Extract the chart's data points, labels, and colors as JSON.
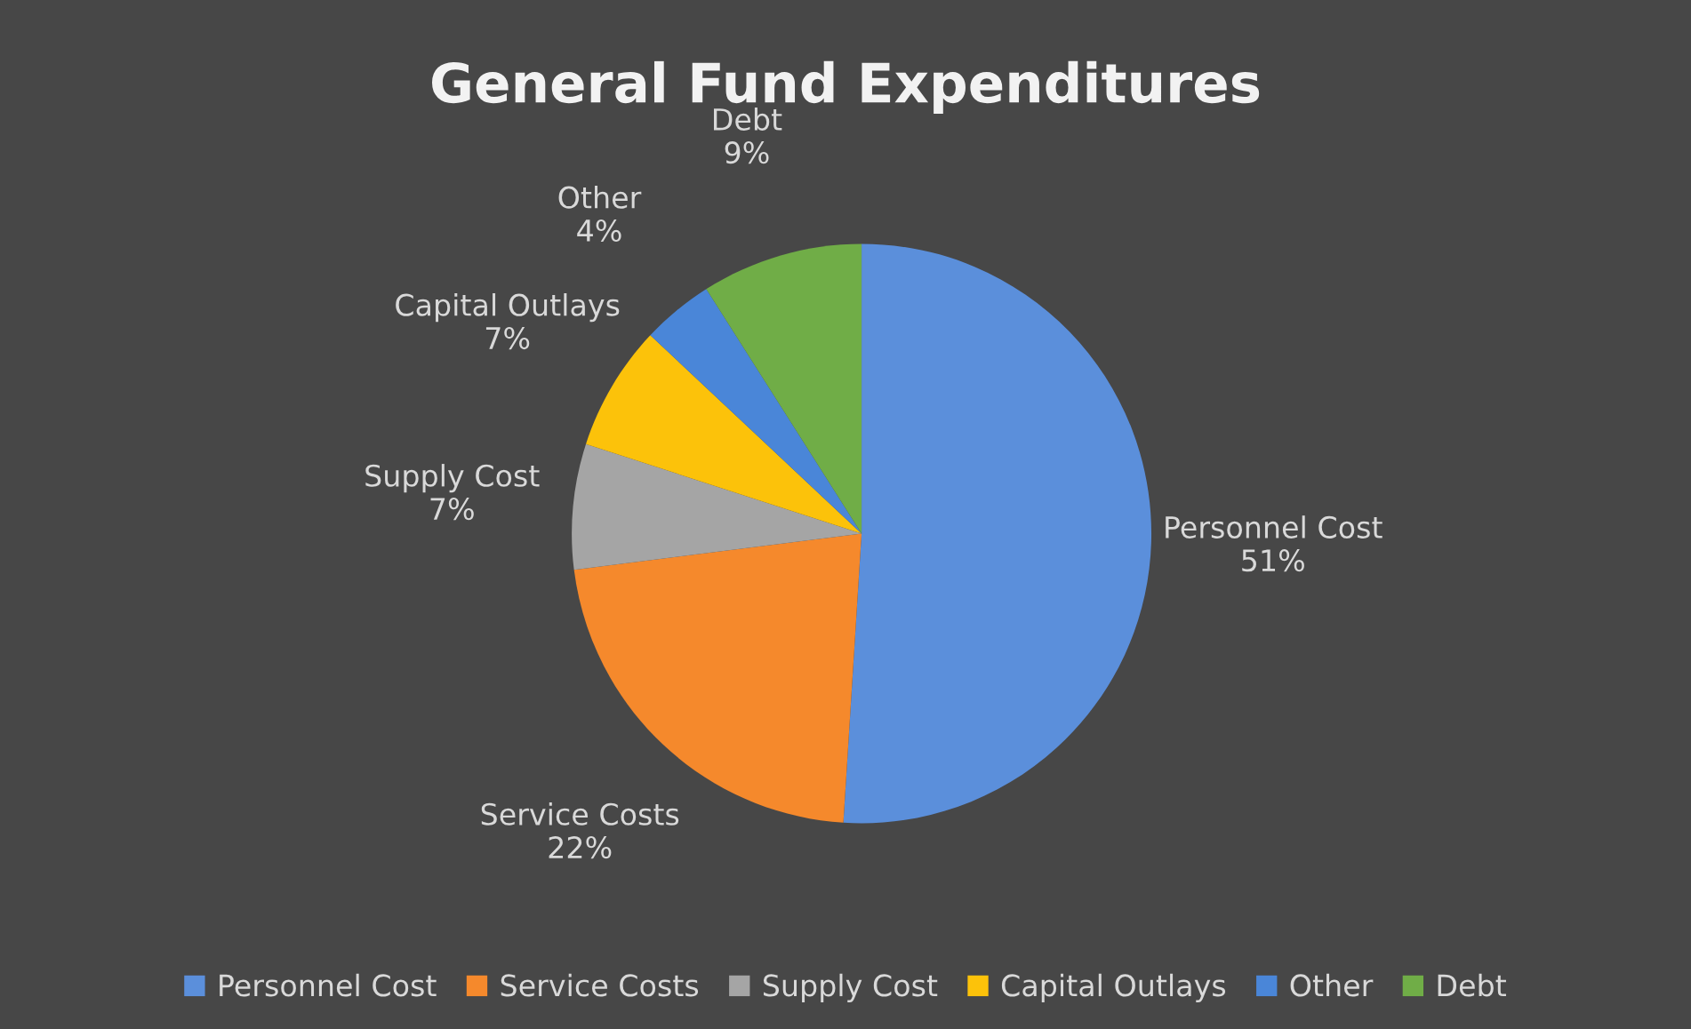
{
  "chart_data": {
    "type": "pie",
    "title": "General Fund Expenditures",
    "categories": [
      "Personnel Cost",
      "Service Costs",
      "Supply Cost",
      "Capital Outlays",
      "Other",
      "Debt"
    ],
    "values": [
      51,
      22,
      7,
      7,
      4,
      9
    ],
    "value_labels": [
      "51%",
      "22%",
      "7%",
      "7%",
      "4%",
      "9%"
    ],
    "colors": [
      "#5b8fdb",
      "#f5892c",
      "#a5a5a5",
      "#fcc20a",
      "#4a86d8",
      "#70ad47"
    ],
    "legend": "bottom"
  }
}
